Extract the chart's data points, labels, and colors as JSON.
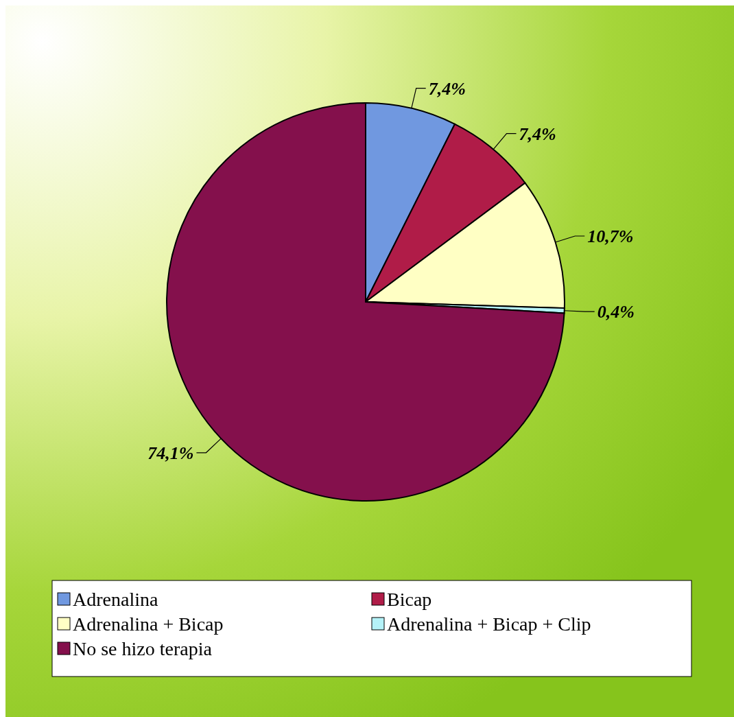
{
  "chart_data": {
    "type": "pie",
    "categories": [
      "Adrenalina",
      "Bicap",
      "Adrenalina + Bicap",
      "Adrenalina + Bicap + Clip",
      "No se hizo terapia"
    ],
    "values": [
      7.4,
      7.4,
      10.7,
      0.4,
      74.1
    ],
    "colors": [
      "#7098e0",
      "#b01c48",
      "#ffffc4",
      "#b4f2f8",
      "#84104c"
    ],
    "value_labels": [
      "7,4%",
      "7,4%",
      "10,7%",
      "0,4%",
      "74,1%"
    ],
    "legend": "bottom"
  }
}
